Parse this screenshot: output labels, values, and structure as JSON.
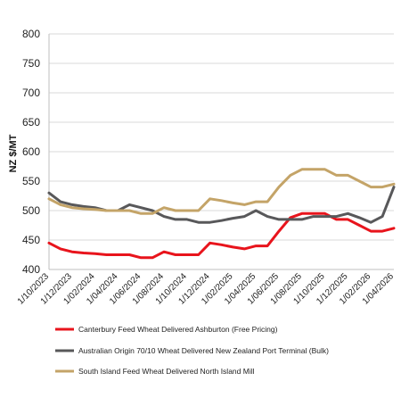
{
  "chart_data": {
    "type": "line",
    "title": "",
    "xlabel": "",
    "ylabel": "NZ $/MT",
    "ylim": [
      400,
      800
    ],
    "yticks": [
      400,
      450,
      500,
      550,
      600,
      650,
      700,
      750,
      800
    ],
    "grid": "horizontal",
    "legend_position": "bottom",
    "x": [
      "1/10/2023",
      "1/11/2023",
      "1/12/2023",
      "1/01/2024",
      "1/02/2024",
      "1/03/2024",
      "1/04/2024",
      "1/05/2024",
      "1/06/2024",
      "1/07/2024",
      "1/08/2024",
      "1/09/2024",
      "1/10/2024",
      "1/11/2024",
      "1/12/2024",
      "1/01/2025",
      "1/02/2025",
      "1/03/2025",
      "1/04/2025",
      "1/05/2025",
      "1/06/2025",
      "1/07/2025",
      "1/08/2025",
      "1/09/2025",
      "1/10/2025",
      "1/11/2025",
      "1/12/2025",
      "1/01/2026",
      "1/02/2026",
      "1/03/2026",
      "1/04/2026"
    ],
    "xtick_labels": [
      "1/10/2023",
      "1/12/2023",
      "1/02/2024",
      "1/04/2024",
      "1/06/2024",
      "1/08/2024",
      "1/10/2024",
      "1/12/2024",
      "1/02/2025",
      "1/04/2025",
      "1/06/2025",
      "1/08/2025",
      "1/10/2025",
      "1/12/2025",
      "1/02/2026",
      "1/04/2026"
    ],
    "series": [
      {
        "name": "Canterbury Feed Wheat Delivered Ashburton (Free Pricing)",
        "color": "#e8141c",
        "values": [
          445,
          435,
          430,
          428,
          427,
          425,
          425,
          425,
          420,
          420,
          430,
          425,
          425,
          425,
          445,
          442,
          438,
          435,
          440,
          440,
          465,
          488,
          495,
          495,
          495,
          485,
          485,
          475,
          465,
          465,
          470
        ]
      },
      {
        "name": "Australian Origin 70/10 Wheat Delivered New Zealand Port Terminal (Bulk)",
        "color": "#58585a",
        "values": [
          530,
          515,
          510,
          507,
          505,
          500,
          500,
          510,
          505,
          500,
          490,
          485,
          485,
          480,
          480,
          483,
          487,
          490,
          500,
          490,
          485,
          485,
          485,
          490,
          490,
          490,
          495,
          488,
          480,
          490,
          540
        ]
      },
      {
        "name": "South Island Feed Wheat Delivered North Island Mill",
        "color": "#c4a468",
        "values": [
          520,
          510,
          505,
          503,
          502,
          500,
          500,
          500,
          495,
          495,
          505,
          500,
          500,
          500,
          520,
          517,
          513,
          510,
          515,
          515,
          540,
          560,
          570,
          570,
          570,
          560,
          560,
          550,
          540,
          540,
          545
        ]
      }
    ]
  }
}
